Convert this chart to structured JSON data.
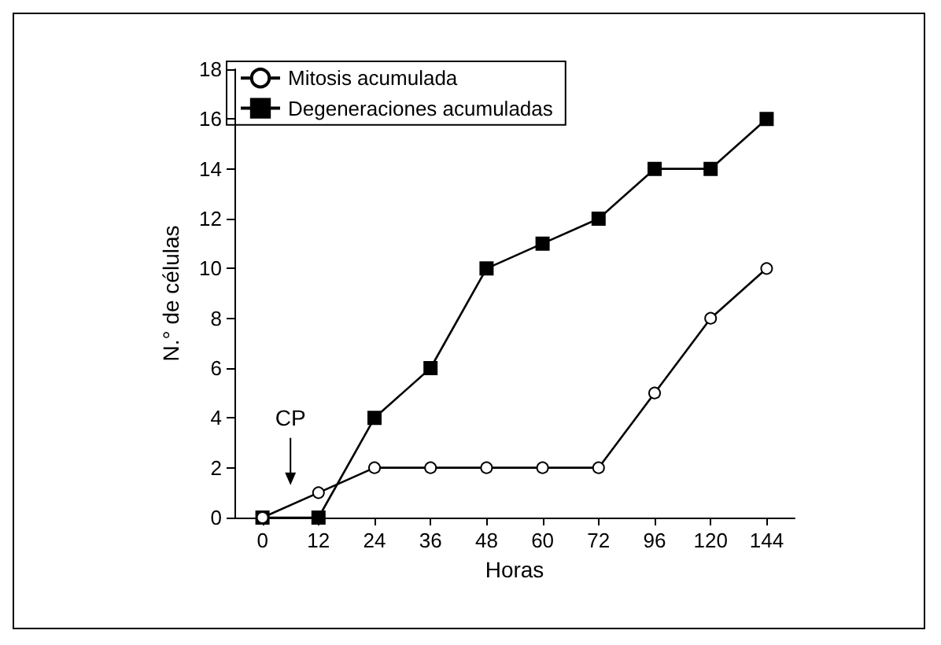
{
  "chart_data": {
    "type": "line",
    "xlabel": "Horas",
    "ylabel": "N.° de células",
    "categories": [
      "0",
      "12",
      "24",
      "36",
      "48",
      "60",
      "72",
      "96",
      "120",
      "144"
    ],
    "series": [
      {
        "name": "Mitosis acumulada",
        "color": "#000000",
        "marker": "circle",
        "values": [
          0,
          1,
          2,
          2,
          2,
          2,
          2,
          5,
          8,
          10
        ]
      },
      {
        "name": "Degeneraciones acumuladas",
        "color": "#000000",
        "marker": "square",
        "values": [
          0,
          0,
          4,
          6,
          10,
          11,
          12,
          14,
          14,
          16
        ]
      }
    ],
    "ylim": [
      0,
      18
    ],
    "yticks": [
      0,
      2,
      4,
      6,
      8,
      10,
      12,
      14,
      16,
      18
    ],
    "grid": false,
    "legend": "top left",
    "line_style": "solid",
    "annotations": [
      "CP"
    ]
  }
}
